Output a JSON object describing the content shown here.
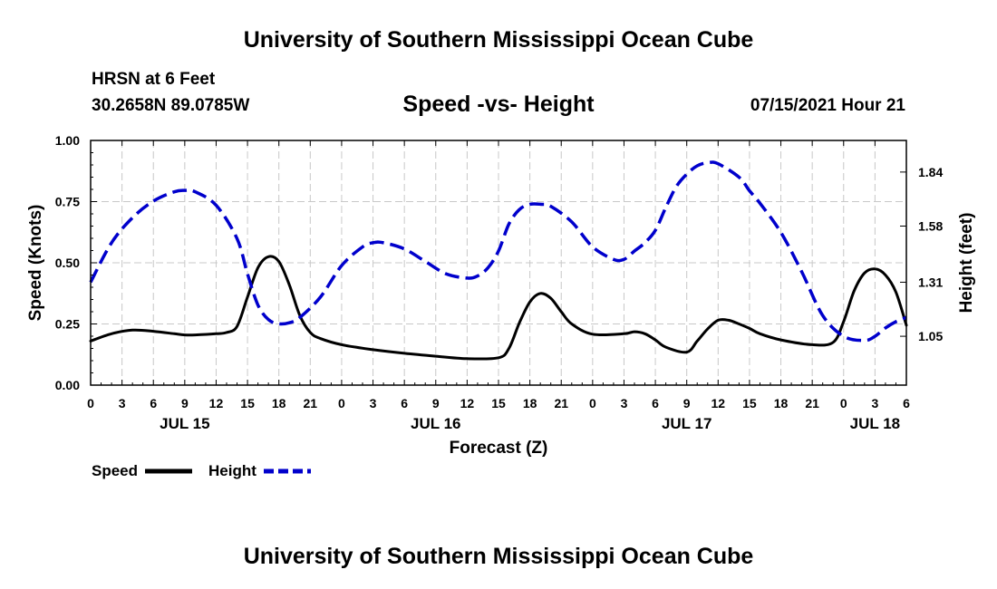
{
  "header": {
    "title": "University of Southern Mississippi Ocean Cube",
    "station": "HRSN at 6 Feet",
    "coords": "30.2658N  89.0785W",
    "chart_title": "Speed -vs- Height",
    "datetime": "07/15/2021 Hour 21"
  },
  "footer": {
    "title": "University of Southern Mississippi Ocean Cube"
  },
  "colors": {
    "speed": "#000000",
    "height": "#0000cc",
    "grid": "#c8c8c8"
  },
  "chart_data": {
    "type": "line",
    "title": "Speed -vs- Height",
    "xlabel": "Forecast (Z)",
    "ylabel_left": "Speed (Knots)",
    "ylabel_right": "Height (feet)",
    "x_range_hours": [
      0,
      78
    ],
    "x_ticks": [
      0,
      3,
      6,
      9,
      12,
      15,
      18,
      21,
      24,
      27,
      30,
      33,
      36,
      39,
      42,
      45,
      48,
      51,
      54,
      57,
      60,
      63,
      66,
      69,
      72,
      75,
      78
    ],
    "x_tick_labels": [
      "0",
      "3",
      "6",
      "9",
      "12",
      "15",
      "18",
      "21",
      "0",
      "3",
      "6",
      "9",
      "12",
      "15",
      "18",
      "21",
      "0",
      "3",
      "6",
      "9",
      "12",
      "15",
      "18",
      "21",
      "0",
      "3",
      "6"
    ],
    "date_labels": [
      {
        "hour": 9,
        "label": "JUL 15"
      },
      {
        "hour": 33,
        "label": "JUL 16"
      },
      {
        "hour": 57,
        "label": "JUL 17"
      },
      {
        "hour": 75,
        "label": "JUL 18"
      }
    ],
    "ylim_left": [
      0,
      1.0
    ],
    "y_ticks_left": [
      0,
      0.25,
      0.5,
      0.75,
      1.0
    ],
    "y_tick_labels_left": [
      "0.00",
      "0.25",
      "0.50",
      "0.75",
      "1.00"
    ],
    "ylim_right": [
      0.815,
      1.992
    ],
    "y_ticks_right": [
      1.05,
      1.31,
      1.58,
      1.84
    ],
    "y_tick_labels_right": [
      "1.05",
      "1.31",
      "1.58",
      "1.84"
    ],
    "grid": true,
    "legend": {
      "position": "bottom-left",
      "speed_label": "Speed",
      "height_label": "Height"
    },
    "series": [
      {
        "name": "Speed",
        "axis": "left",
        "style": "solid",
        "x": [
          0,
          2,
          4,
          6,
          8,
          9,
          10,
          12,
          13,
          14,
          15,
          16,
          17,
          18,
          19,
          20,
          21,
          22,
          24,
          27,
          30,
          33,
          36,
          39,
          40,
          41,
          42,
          43,
          44,
          45,
          46,
          48,
          51,
          52,
          53,
          54,
          55,
          57,
          58,
          59,
          60,
          61,
          62,
          63,
          64,
          66,
          69,
          71,
          72,
          73,
          74,
          75,
          76,
          77,
          78
        ],
        "values": [
          0.18,
          0.21,
          0.225,
          0.22,
          0.21,
          0.205,
          0.205,
          0.21,
          0.215,
          0.24,
          0.36,
          0.48,
          0.525,
          0.505,
          0.41,
          0.285,
          0.215,
          0.19,
          0.165,
          0.145,
          0.13,
          0.118,
          0.108,
          0.112,
          0.15,
          0.255,
          0.34,
          0.375,
          0.355,
          0.3,
          0.25,
          0.208,
          0.21,
          0.218,
          0.21,
          0.185,
          0.155,
          0.135,
          0.18,
          0.23,
          0.265,
          0.265,
          0.25,
          0.232,
          0.21,
          0.185,
          0.165,
          0.175,
          0.26,
          0.385,
          0.458,
          0.475,
          0.45,
          0.38,
          0.245
        ]
      },
      {
        "name": "Height",
        "axis": "right",
        "style": "dashed",
        "x": [
          0,
          2,
          4,
          6,
          8,
          9,
          10,
          12,
          14,
          15,
          16,
          17,
          18,
          19,
          20,
          22,
          24,
          26,
          27,
          28,
          30,
          32,
          34,
          36,
          37,
          38,
          39,
          40,
          41,
          42,
          43,
          44,
          46,
          48,
          50,
          51,
          52,
          53,
          54,
          55,
          56,
          57,
          58,
          59,
          60,
          62,
          63,
          64,
          66,
          68,
          70,
          72,
          74,
          75,
          76,
          77,
          78
        ],
        "values": [
          1.31,
          1.5,
          1.62,
          1.7,
          1.745,
          1.752,
          1.745,
          1.68,
          1.52,
          1.35,
          1.2,
          1.13,
          1.11,
          1.115,
          1.14,
          1.24,
          1.39,
          1.48,
          1.5,
          1.5,
          1.47,
          1.41,
          1.35,
          1.33,
          1.34,
          1.38,
          1.46,
          1.59,
          1.66,
          1.685,
          1.685,
          1.675,
          1.6,
          1.48,
          1.42,
          1.42,
          1.46,
          1.5,
          1.56,
          1.67,
          1.77,
          1.83,
          1.87,
          1.885,
          1.88,
          1.815,
          1.75,
          1.69,
          1.55,
          1.36,
          1.15,
          1.05,
          1.03,
          1.05,
          1.09,
          1.12,
          1.14
        ]
      }
    ]
  }
}
